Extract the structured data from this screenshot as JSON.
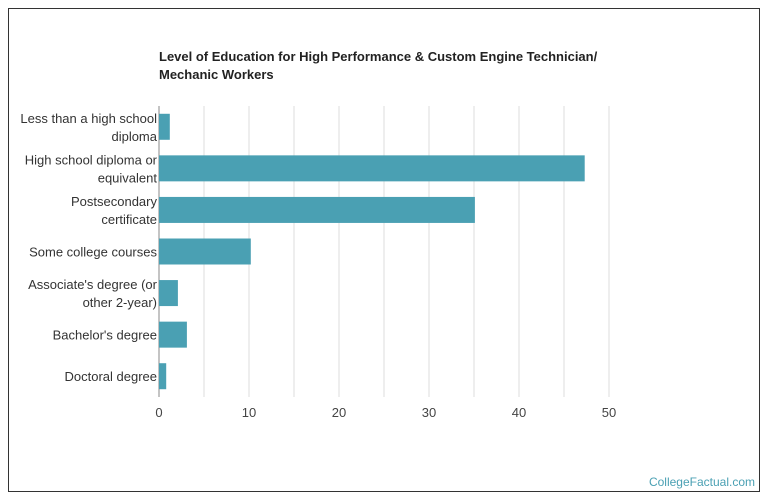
{
  "chart_data": {
    "type": "bar",
    "orientation": "horizontal",
    "title_lines": [
      "Level of Education for High Performance & Custom Engine Technician/",
      "Mechanic Workers"
    ],
    "categories": [
      [
        "Less than a high school",
        "diploma"
      ],
      [
        "High school diploma or",
        "equivalent"
      ],
      [
        "Postsecondary",
        "certificate"
      ],
      [
        "Some college courses"
      ],
      [
        "Associate's degree (or",
        "other 2-year)"
      ],
      [
        "Bachelor's degree"
      ],
      [
        "Doctoral degree"
      ]
    ],
    "values": [
      1.2,
      47.3,
      35.1,
      10.2,
      2.1,
      3.1,
      0.8
    ],
    "xlim": [
      0,
      50
    ],
    "xticks": [
      "0",
      "10",
      "20",
      "30",
      "40",
      "50"
    ],
    "grid": "vertical",
    "legend": "none",
    "bar_color": "#4aa0b3",
    "grid_color": "#dddddd"
  },
  "watermark": "CollegeFactual.com"
}
